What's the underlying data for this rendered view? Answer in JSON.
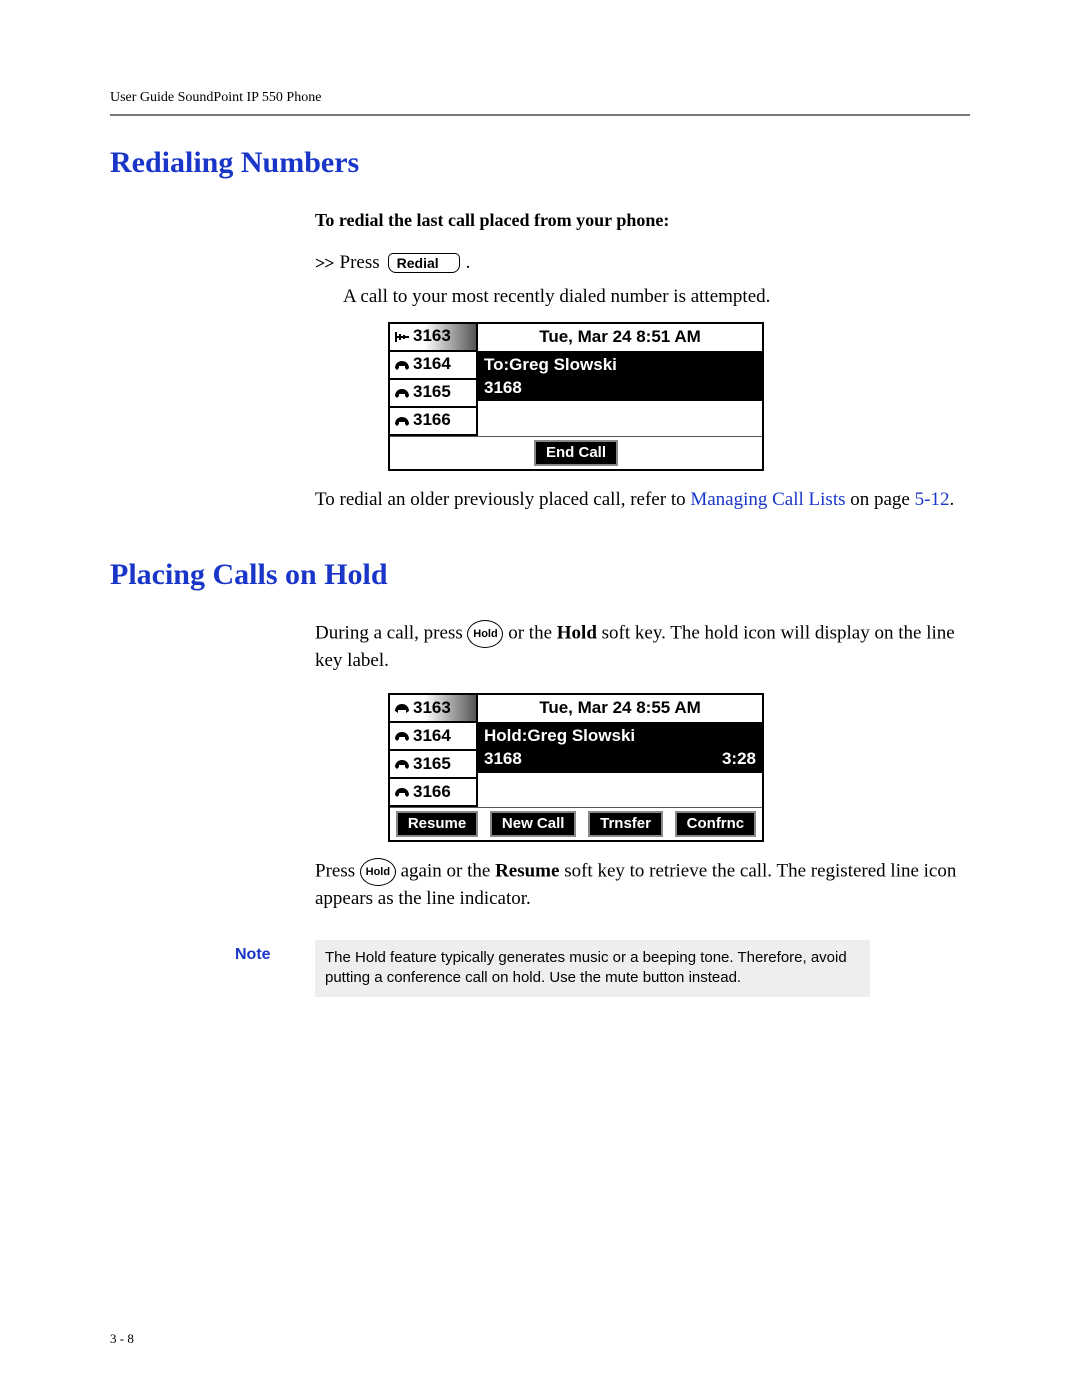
{
  "header": {
    "running": "User Guide SoundPoint IP 550 Phone"
  },
  "section1": {
    "title": "Redialing Numbers",
    "subhead": "To redial the last call placed from your phone:",
    "press_label": "Press",
    "redial_key": "Redial",
    "period": ".",
    "result_text": "A call to your most recently dialed number is attempted.",
    "refer_prefix": "To redial an older previously placed call, refer to ",
    "refer_link": "Managing Call Lists",
    "refer_mid": " on page ",
    "refer_page": "5-12",
    "refer_end": "."
  },
  "screen1": {
    "datetime": "Tue, Mar 24  8:51 AM",
    "lines": [
      {
        "num": "3163",
        "selected": true,
        "iconType": "dialing"
      },
      {
        "num": "3164",
        "selected": false,
        "iconType": "phone"
      },
      {
        "num": "3165",
        "selected": false,
        "iconType": "phone"
      },
      {
        "num": "3166",
        "selected": false,
        "iconType": "phone"
      }
    ],
    "call_to_label": "To:Greg Slowski",
    "call_number": "3168",
    "softkeys": [
      "End Call"
    ]
  },
  "section2": {
    "title": "Placing Calls on Hold",
    "text1a": "During a call, press ",
    "hold_key": "Hold",
    "text1b": " or the ",
    "hold_bold": "Hold",
    "text1c": " soft key. The hold icon will display on the line key label.",
    "text2a": "Press ",
    "text2b": " again or the ",
    "resume_bold": "Resume",
    "text2c": " soft key to retrieve the call. The registered line icon appears as the line indicator."
  },
  "screen2": {
    "datetime": "Tue, Mar 24  8:55 AM",
    "lines": [
      {
        "num": "3163",
        "selected": true,
        "iconType": "hold"
      },
      {
        "num": "3164",
        "selected": false,
        "iconType": "phone"
      },
      {
        "num": "3165",
        "selected": false,
        "iconType": "phone"
      },
      {
        "num": "3166",
        "selected": false,
        "iconType": "phone"
      }
    ],
    "call_to_label": "Hold:Greg Slowski",
    "call_number": "3168",
    "call_timer": "3:28",
    "softkeys": [
      "Resume",
      "New Call",
      "Trnsfer",
      "Confrnc"
    ]
  },
  "note": {
    "label": "Note",
    "text": "The Hold feature typically generates music or a beeping tone. Therefore, avoid putting a conference call on hold. Use the mute button instead."
  },
  "footer": {
    "pagenum": "3 - 8"
  }
}
